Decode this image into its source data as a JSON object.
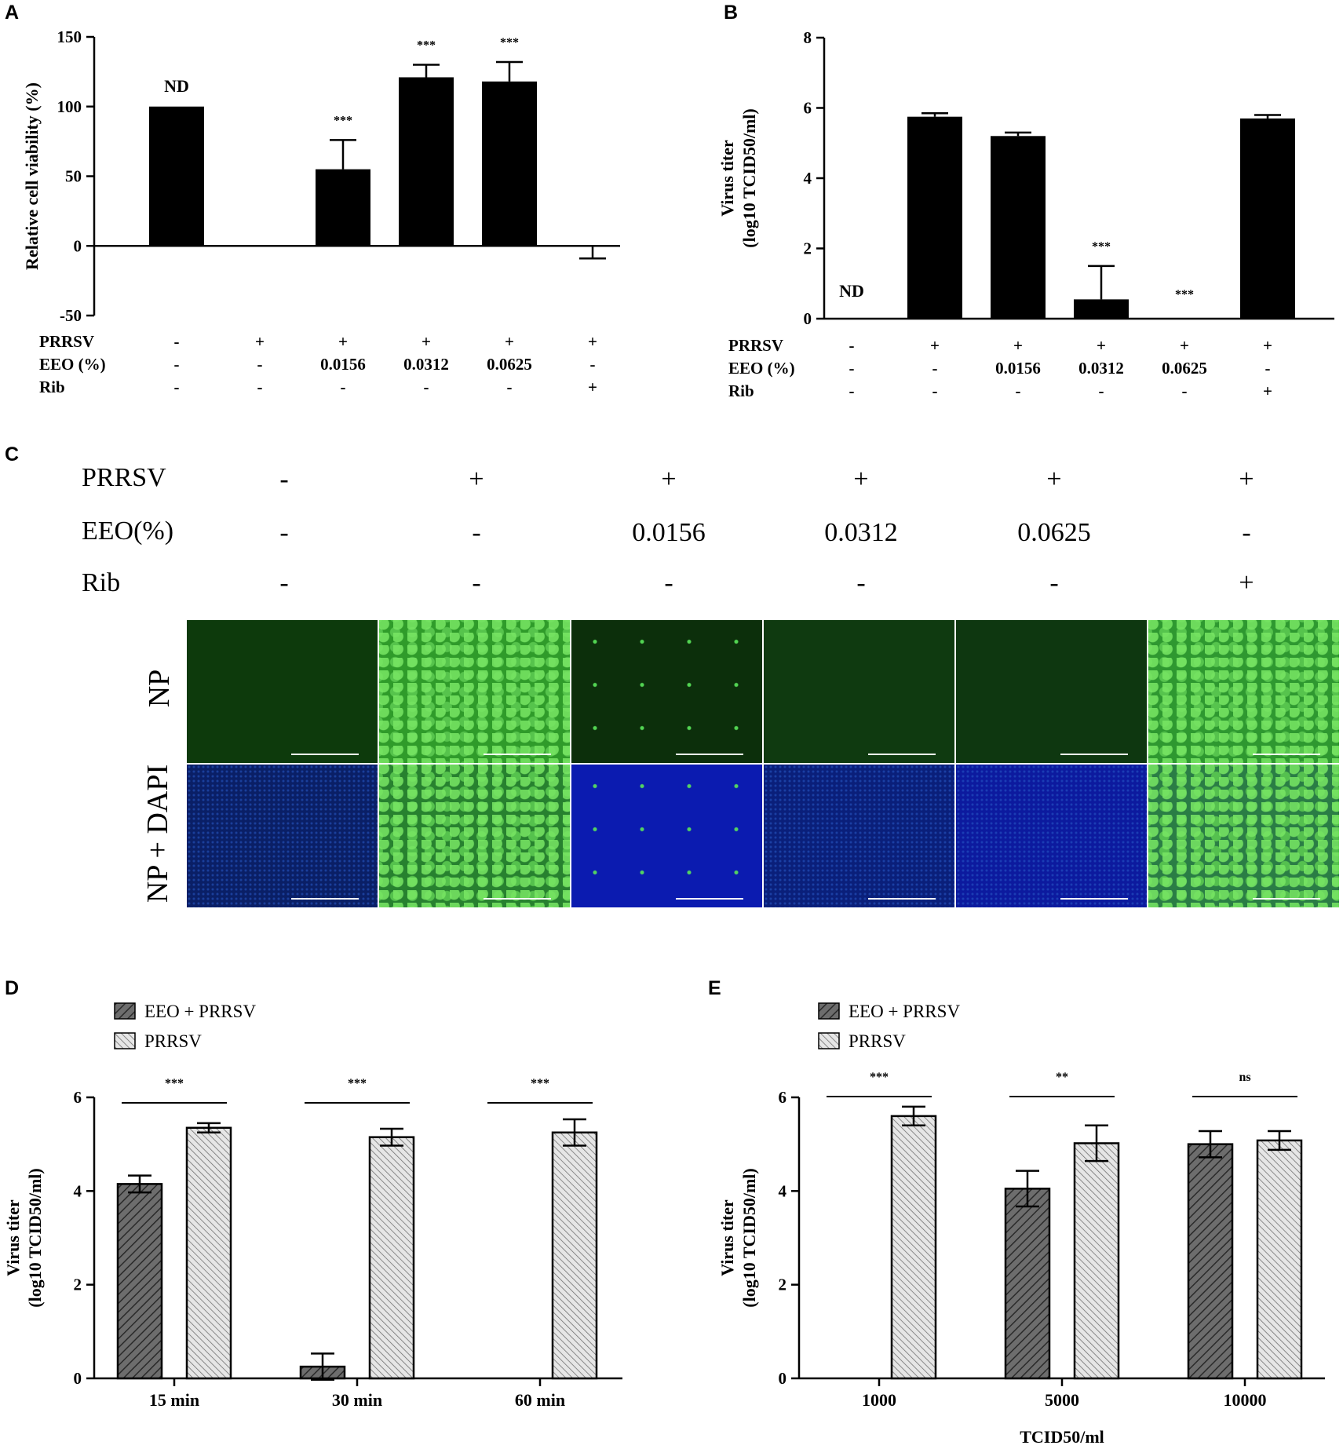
{
  "panels": {
    "A": "A",
    "B": "B",
    "C": "C",
    "D": "D",
    "E": "E"
  },
  "condition_labels": {
    "prrsv": "PRRSV",
    "eeo": "EEO (%)",
    "rib": "Rib",
    "eeo_c": "EEO(%)"
  },
  "conditions": {
    "prrsv": [
      "-",
      "+",
      "+",
      "+",
      "+",
      "+"
    ],
    "eeo": [
      "-",
      "-",
      "0.0156",
      "0.0312",
      "0.0625",
      "-"
    ],
    "rib": [
      "-",
      "-",
      "-",
      "-",
      "-",
      "+"
    ]
  },
  "microscopy": {
    "row_labels": [
      "NP",
      "NP + DAPI"
    ],
    "np_colors": [
      "#0d3a0c",
      "#2f9b2a",
      "#0c2f0b",
      "#0f3a10",
      "#0e3710",
      "#2e9830"
    ],
    "merge_colors": [
      "#0a1f66",
      "#27812f",
      "#0b1bb0",
      "#0a1f7a",
      "#0c1a9e",
      "#2a7d45"
    ],
    "np_pattern": [
      "none",
      "dense",
      "sparse",
      "none",
      "none",
      "dense"
    ],
    "merge_pattern": [
      "dapi",
      "dense",
      "sparse",
      "dapi",
      "dapi",
      "dense"
    ]
  },
  "chart_data": [
    {
      "id": "A",
      "type": "bar",
      "ylabel": "Relative cell viability (%)",
      "ylim": [
        -50,
        150
      ],
      "yticks": [
        -50,
        0,
        50,
        100,
        150
      ],
      "values": [
        100,
        0,
        55,
        121,
        118,
        0
      ],
      "errors": [
        0,
        0,
        21,
        9,
        14,
        9
      ],
      "error_dir": [
        "up",
        "up",
        "up",
        "up",
        "up",
        "down"
      ],
      "annotations": [
        "ND",
        "",
        "***",
        "***",
        "***",
        ""
      ]
    },
    {
      "id": "B",
      "type": "bar",
      "ylabel_line1": "Virus titer",
      "ylabel_line2": "(log10 TCID50/ml)",
      "ylim": [
        0,
        8
      ],
      "yticks": [
        0,
        2,
        4,
        6,
        8
      ],
      "values": [
        0,
        5.75,
        5.2,
        0.55,
        0,
        5.7
      ],
      "errors": [
        0,
        0.1,
        0.1,
        0.95,
        0,
        0.1
      ],
      "annotations": [
        "ND",
        "",
        "",
        "***",
        "***",
        ""
      ]
    },
    {
      "id": "D",
      "type": "bar",
      "ylabel_line1": "Virus titer",
      "ylabel_line2": "(log10 TCID50/ml)",
      "ylim": [
        0,
        6
      ],
      "yticks": [
        0,
        2,
        4,
        6
      ],
      "categories": [
        "15 min",
        "30 min",
        "60 min"
      ],
      "series": [
        {
          "name": "EEO + PRRSV",
          "values": [
            4.15,
            0.25,
            0
          ],
          "errors": [
            0.18,
            0.28,
            0
          ]
        },
        {
          "name": "PRRSV",
          "values": [
            5.35,
            5.15,
            5.25
          ],
          "errors": [
            0.1,
            0.18,
            0.28
          ]
        }
      ],
      "significance": [
        "***",
        "***",
        "***"
      ]
    },
    {
      "id": "E",
      "type": "bar",
      "ylabel_line1": "Virus titer",
      "ylabel_line2": "(log10 TCID50/ml)",
      "xlabel": "TCID50/ml",
      "ylim": [
        0,
        6
      ],
      "yticks": [
        0,
        2,
        4,
        6
      ],
      "categories": [
        "1000",
        "5000",
        "10000"
      ],
      "series": [
        {
          "name": "EEO + PRRSV",
          "values": [
            0,
            4.05,
            5.0
          ],
          "errors": [
            0,
            0.38,
            0.28
          ]
        },
        {
          "name": "PRRSV",
          "values": [
            5.6,
            5.02,
            5.08
          ],
          "errors": [
            0.2,
            0.38,
            0.2
          ]
        }
      ],
      "significance": [
        "***",
        "**",
        "ns"
      ]
    }
  ]
}
